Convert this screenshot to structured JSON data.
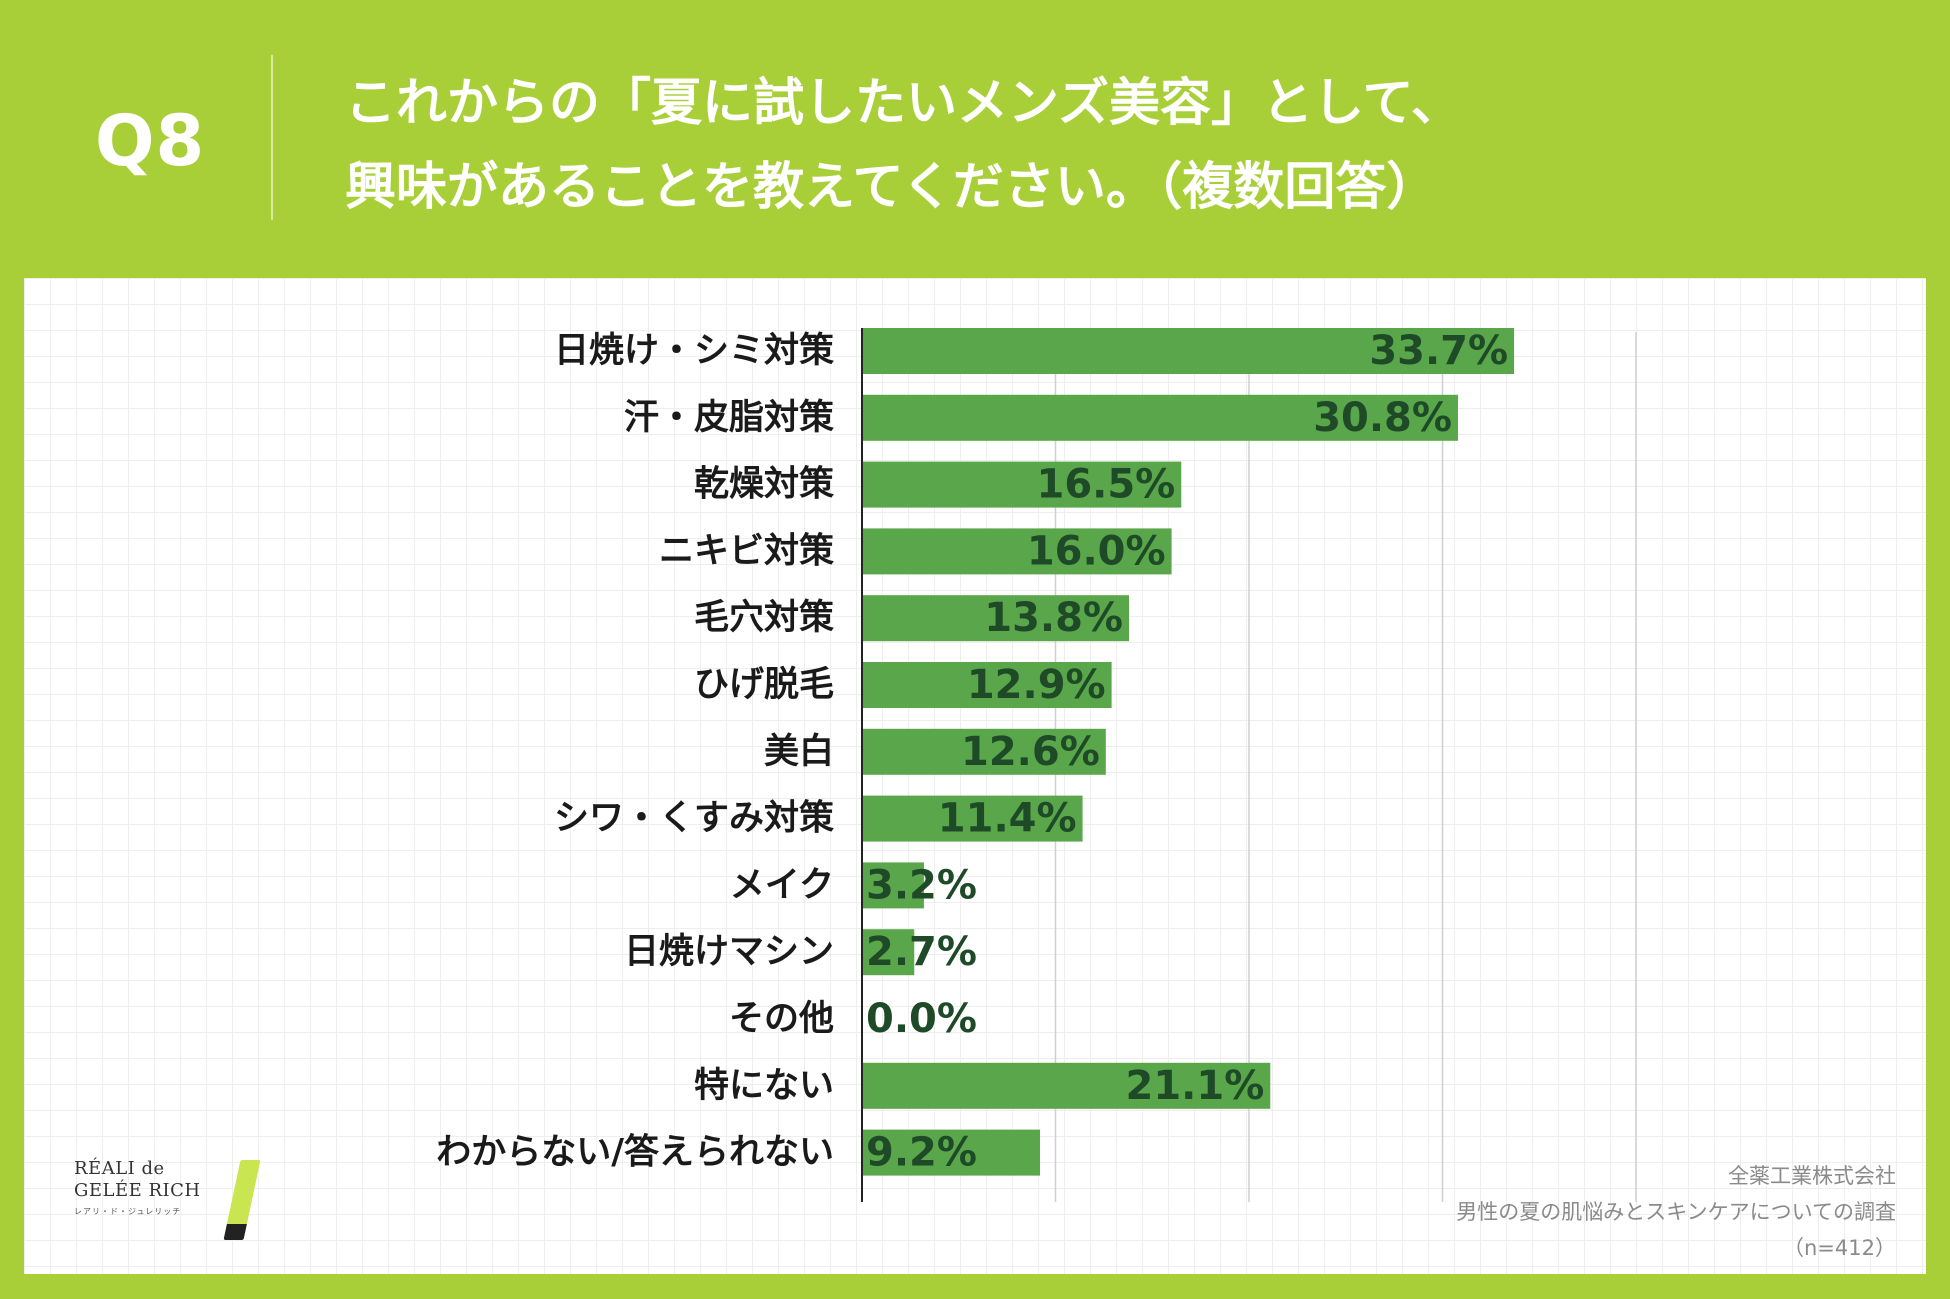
{
  "question": {
    "number": "Q8",
    "title_line1": "これからの「夏に試したいメンズ美容」として、",
    "title_line2": "興味があることを教えてください。（複数回答）"
  },
  "chart_data": {
    "type": "bar",
    "orientation": "horizontal",
    "title": "これからの「夏に試したいメンズ美容」として、興味があることを教えてください。（複数回答）",
    "categories": [
      "日焼け・シミ対策",
      "汗・皮脂対策",
      "乾燥対策",
      "ニキビ対策",
      "毛穴対策",
      "ひげ脱毛",
      "美白",
      "シワ・くすみ対策",
      "メイク",
      "日焼けマシン",
      "その他",
      "特にない",
      "わからない/答えられない"
    ],
    "values": [
      33.7,
      30.8,
      16.5,
      16.0,
      13.8,
      12.9,
      12.6,
      11.4,
      3.2,
      2.7,
      0.0,
      21.1,
      9.2
    ],
    "value_labels": [
      "33.7%",
      "30.8%",
      "16.5%",
      "16.0%",
      "13.8%",
      "12.9%",
      "12.6%",
      "11.4%",
      "3.2%",
      "2.7%",
      "0.0%",
      "21.1%",
      "9.2%"
    ],
    "xlim": [
      0,
      40
    ],
    "grid_step": 10,
    "unit": "%",
    "grid": true
  },
  "source": {
    "company": "全薬工業株式会社",
    "survey": "男性の夏の肌悩みとスキンケアについての調査",
    "sample": "（n=412）"
  },
  "logo": {
    "line1": "RÉALI de",
    "line2": "GELÉE RICH",
    "kana": "レアリ・ド・ジュレリッチ"
  },
  "colors": {
    "background": "#a8cf38",
    "bar": "#5aa64a",
    "bar_label": "#1e4a28",
    "category_label": "#1a1a1a"
  }
}
